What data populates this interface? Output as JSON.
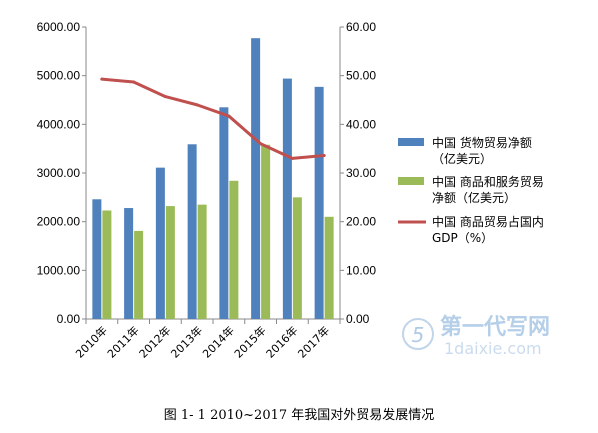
{
  "chart_data": {
    "type": "bar",
    "categories": [
      "2010年",
      "2011年",
      "2012年",
      "2013年",
      "2014年",
      "2015年",
      "2016年",
      "2017年"
    ],
    "series": [
      {
        "name": "中国 货物贸易净额（亿美元）",
        "type": "bar",
        "axis": "left",
        "color": "#4f81bd",
        "values": [
          2460,
          2280,
          3110,
          3590,
          4350,
          5770,
          4940,
          4770
        ]
      },
      {
        "name": "中国 商品和服务贸易净额（亿美元）",
        "type": "bar",
        "axis": "left",
        "color": "#9bbb59",
        "values": [
          2230,
          1810,
          2320,
          2350,
          2840,
          3580,
          2500,
          2100
        ]
      },
      {
        "name": "中国 商品贸易占国内GDP（%）",
        "type": "line",
        "axis": "right",
        "color": "#c0504d",
        "values": [
          49.3,
          48.7,
          45.7,
          44.0,
          41.7,
          36.0,
          33.0,
          33.6
        ]
      }
    ],
    "y_left": {
      "min": 0,
      "max": 6000,
      "step": 1000,
      "tick_labels": [
        "0.00",
        "1000.00",
        "2000.00",
        "3000.00",
        "4000.00",
        "5000.00",
        "6000.00"
      ]
    },
    "y_right": {
      "min": 0,
      "max": 60,
      "step": 10,
      "tick_labels": [
        "0.00",
        "10.00",
        "20.00",
        "30.00",
        "40.00",
        "50.00",
        "60.00"
      ]
    },
    "grid": false,
    "legend_position": "right",
    "legend": [
      {
        "lines": [
          "中国 货物贸易净额",
          "（亿美元）"
        ]
      },
      {
        "lines": [
          "中国 商品和服务贸易",
          "净额（亿美元）"
        ]
      },
      {
        "lines": [
          "中国 商品贸易占国内",
          "GDP（%）"
        ]
      }
    ]
  },
  "caption": "图  1- 1 2010~2017 年我国对外贸易发展情况",
  "watermark": {
    "text_cn": "第一代写网",
    "text_en": "1daixie.com",
    "mark": "5"
  }
}
